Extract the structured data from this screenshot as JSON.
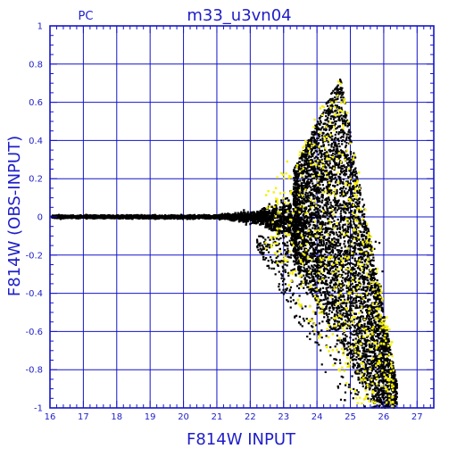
{
  "header": {
    "left_label": "PC",
    "title": "m33_u3vn04"
  },
  "colors": {
    "axis": "#1414c8",
    "grid": "#1414c8",
    "label": "#1e1ec8",
    "points_primary": "#000000",
    "points_secondary": "#f5f000"
  },
  "chart_data": {
    "type": "scatter",
    "title": "m33_u3vn04",
    "xlabel": "F814W INPUT",
    "ylabel": "F814W (OBS-INPUT)",
    "xlim": [
      16,
      27.5
    ],
    "ylim": [
      -1,
      1
    ],
    "grid": true,
    "x_ticks": [
      "16",
      "17",
      "18",
      "19",
      "20",
      "21",
      "22",
      "23",
      "24",
      "25",
      "26",
      "27"
    ],
    "y_ticks": [
      "1",
      "0.8",
      "0.6",
      "0.4",
      "0.2",
      "0",
      "-0.2",
      "-0.4",
      "-0.6",
      "-0.8",
      "-1"
    ],
    "series": [
      {
        "color": "#000000",
        "description": "dense band near 0 from 16 to ~22, widening to about +/-0.3 near 23.5, fan between 24 and 26 spanning 0.7 to -1",
        "points": [
          [
            16.2,
            0.0
          ],
          [
            16.8,
            0.01
          ],
          [
            17.5,
            -0.01
          ],
          [
            18.2,
            0.0
          ],
          [
            19.0,
            0.01
          ],
          [
            19.8,
            -0.01
          ],
          [
            20.5,
            0.0
          ],
          [
            21.2,
            0.02
          ],
          [
            21.8,
            -0.03
          ],
          [
            22.3,
            0.05
          ],
          [
            22.6,
            -0.08
          ],
          [
            22.9,
            0.1
          ],
          [
            23.2,
            -0.12
          ],
          [
            23.5,
            0.18
          ],
          [
            23.8,
            -0.2
          ],
          [
            24.0,
            0.3
          ],
          [
            24.2,
            -0.3
          ],
          [
            24.4,
            0.45
          ],
          [
            24.6,
            0.6
          ],
          [
            24.7,
            0.75
          ],
          [
            24.9,
            0.3
          ],
          [
            25.0,
            -0.1
          ],
          [
            25.2,
            -0.3
          ],
          [
            25.4,
            -0.5
          ],
          [
            25.6,
            -0.65
          ],
          [
            25.8,
            -0.8
          ],
          [
            26.0,
            -0.9
          ],
          [
            26.2,
            -0.98
          ]
        ]
      },
      {
        "color": "#f5f000",
        "description": "yellow points inside the fan between 22.5 and 26.3",
        "points": [
          [
            22.7,
            -0.15
          ],
          [
            23.1,
            -0.2
          ],
          [
            23.5,
            0.05
          ],
          [
            23.8,
            -0.3
          ],
          [
            24.1,
            0.2
          ],
          [
            24.3,
            -0.5
          ],
          [
            24.5,
            0.55
          ],
          [
            24.7,
            0.72
          ],
          [
            24.8,
            -0.75
          ],
          [
            25.0,
            0.1
          ],
          [
            25.2,
            -0.85
          ],
          [
            25.4,
            -0.4
          ],
          [
            25.6,
            -0.6
          ],
          [
            25.9,
            -0.85
          ],
          [
            26.2,
            -0.95
          ]
        ]
      }
    ]
  }
}
